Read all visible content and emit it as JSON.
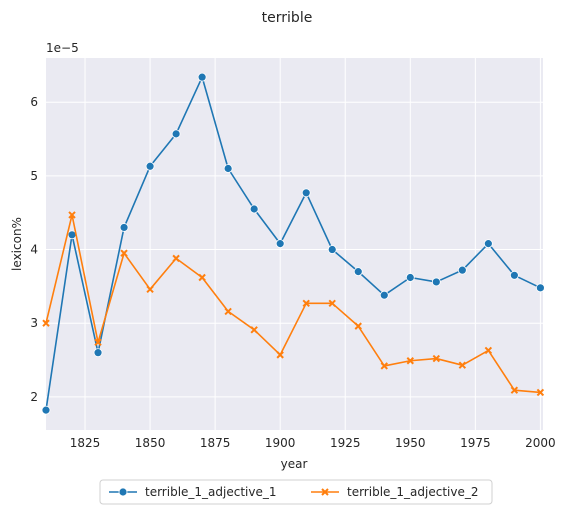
{
  "chart_data": {
    "type": "line",
    "title": "terrible",
    "xlabel": "year",
    "ylabel": "lexicon%",
    "y_scale_label": "1e−5",
    "xlim": [
      1810,
      2001
    ],
    "ylim": [
      1.55,
      6.6
    ],
    "x_ticks": [
      1825,
      1850,
      1875,
      1900,
      1925,
      1950,
      1975,
      2000
    ],
    "y_ticks": [
      2,
      3,
      4,
      5,
      6
    ],
    "grid": true,
    "legend_position": "bottom-center",
    "x": [
      1810,
      1820,
      1830,
      1840,
      1850,
      1860,
      1870,
      1880,
      1890,
      1900,
      1910,
      1920,
      1930,
      1940,
      1950,
      1960,
      1970,
      1980,
      1990,
      2000
    ],
    "series": [
      {
        "name": "terrible_1_adjective_1",
        "color": "#1f77b4",
        "marker": "circle",
        "values": [
          1.82,
          4.2,
          2.6,
          4.3,
          5.13,
          5.57,
          6.34,
          5.1,
          4.55,
          4.08,
          4.77,
          4.0,
          3.7,
          3.38,
          3.62,
          3.56,
          3.72,
          4.08,
          3.65,
          3.48
        ]
      },
      {
        "name": "terrible_1_adjective_2",
        "color": "#ff7f0e",
        "marker": "x",
        "values": [
          3.0,
          4.47,
          2.74,
          3.95,
          3.46,
          3.88,
          3.62,
          3.16,
          2.91,
          2.57,
          3.27,
          3.27,
          2.96,
          2.42,
          2.49,
          2.52,
          2.43,
          2.63,
          2.09,
          2.06
        ]
      }
    ]
  }
}
